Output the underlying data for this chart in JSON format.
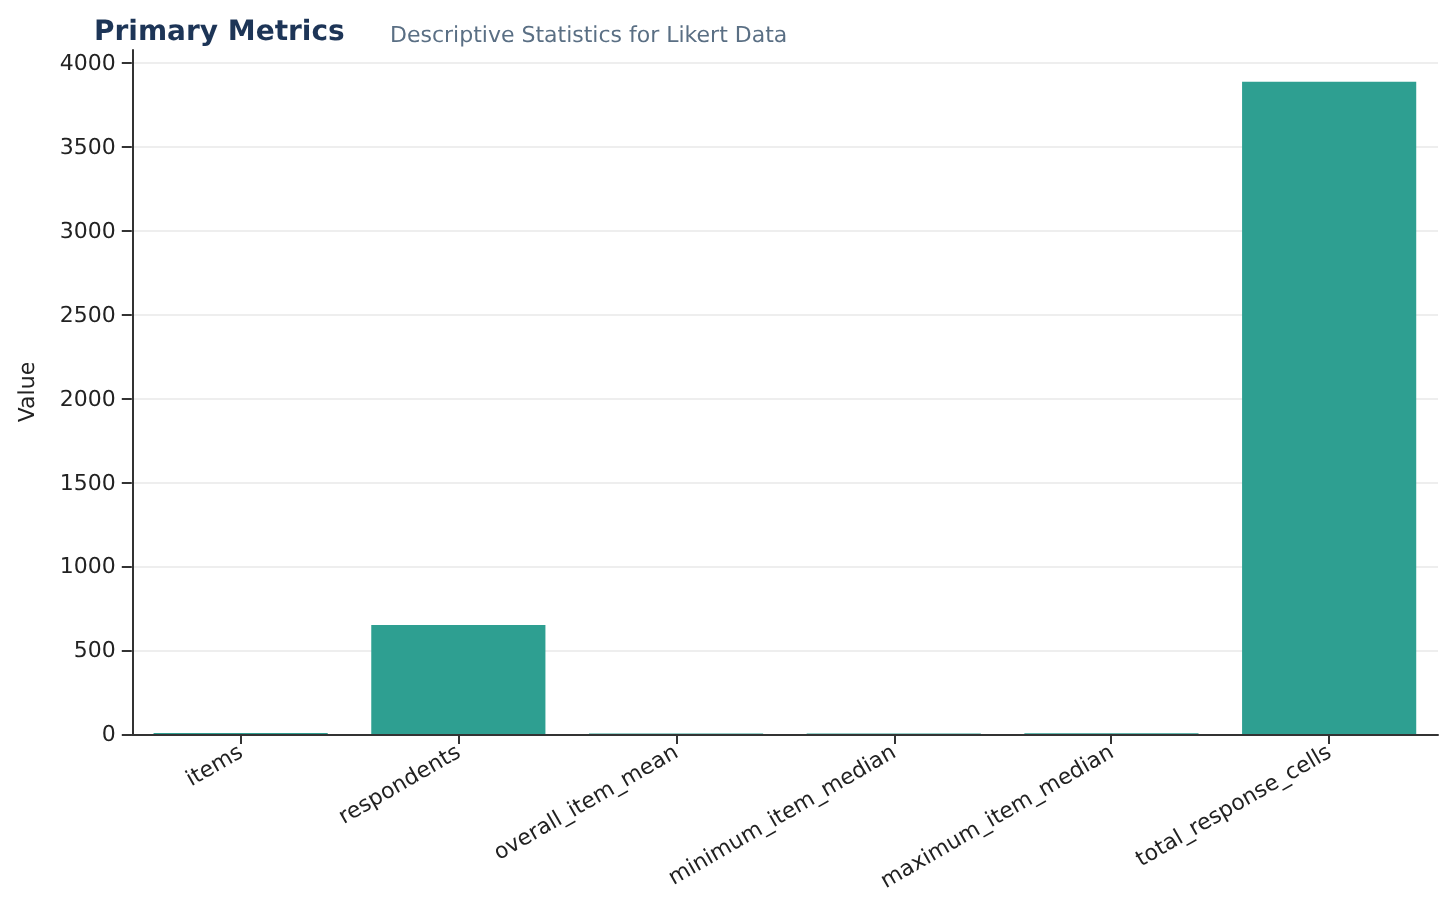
{
  "chart_data": {
    "type": "bar",
    "title": "Primary Metrics",
    "subtitle": "Descriptive Statistics for Likert Data",
    "ylabel": "Value",
    "categories": [
      "items",
      "respondents",
      "overall_item_mean",
      "minimum_item_median",
      "maximum_item_median",
      "total_response_cells"
    ],
    "values": [
      6,
      650,
      3,
      3,
      4,
      3890
    ],
    "color": "#2a9d8f",
    "ylim": [
      0,
      4080
    ],
    "yticks": [
      0,
      500,
      1000,
      1500,
      2000,
      2500,
      3000,
      3500,
      4000
    ],
    "grid": "y"
  }
}
